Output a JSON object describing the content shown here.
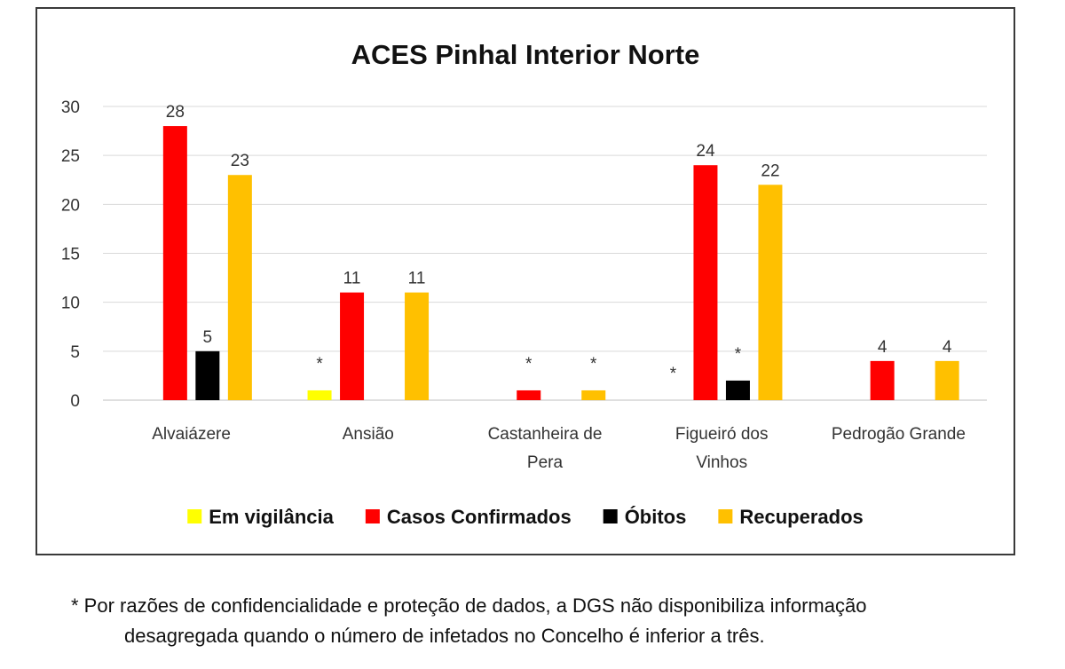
{
  "chart_data": {
    "type": "bar",
    "title": "ACES Pinhal Interior Norte",
    "categories": [
      [
        "Alvaiázere"
      ],
      [
        "Ansião"
      ],
      [
        "Castanheira de",
        "Pera"
      ],
      [
        "Figueiró dos",
        "Vinhos"
      ],
      [
        "Pedrogão Grande"
      ]
    ],
    "ylim": [
      0,
      30
    ],
    "yticks": [
      0,
      5,
      10,
      15,
      20,
      25,
      30
    ],
    "grid": true,
    "legend_position": "bottom",
    "series": [
      {
        "name": "Em vigilância",
        "color": "#ffff00",
        "values": [
          null,
          1,
          null,
          null,
          null
        ],
        "labels": [
          "",
          "*",
          "",
          "*",
          ""
        ]
      },
      {
        "name": "Casos Confirmados",
        "color": "#ff0000",
        "values": [
          28,
          11,
          1,
          24,
          4
        ],
        "labels": [
          "28",
          "11",
          "*",
          "24",
          "4"
        ]
      },
      {
        "name": "Óbitos",
        "color": "#000000",
        "values": [
          5,
          null,
          null,
          2,
          null
        ],
        "labels": [
          "5",
          "",
          "",
          "*",
          ""
        ]
      },
      {
        "name": "Recuperados",
        "color": "#ffc000",
        "values": [
          23,
          11,
          1,
          22,
          4
        ],
        "labels": [
          "23",
          "11",
          "*",
          "22",
          "4"
        ]
      }
    ]
  },
  "footnote": {
    "line1": "* Por razões de confidencialidade e proteção de dados, a DGS não disponibiliza informação",
    "line2": "desagregada quando o número de infetados no Concelho é inferior a três."
  }
}
